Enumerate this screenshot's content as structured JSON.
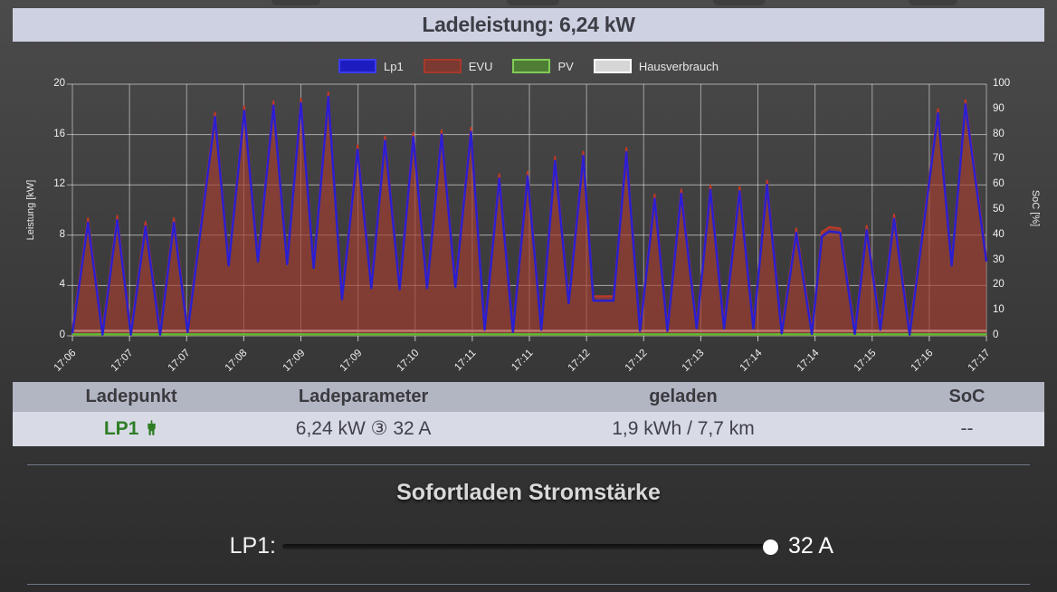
{
  "header": {
    "title": "Ladeleistung: 6,24 kW"
  },
  "legend": {
    "items": [
      {
        "label": "Lp1",
        "fill": "#1c1cc0",
        "border": "#3c3cf0"
      },
      {
        "label": "EVU",
        "fill": "#7c3931",
        "border": "#a8382a"
      },
      {
        "label": "PV",
        "fill": "#4e7e36",
        "border": "#82cc55"
      },
      {
        "label": "Hausverbrauch",
        "fill": "#d6d6d6",
        "border": "#fdfdfd"
      }
    ]
  },
  "chart_data": {
    "type": "line",
    "title": "Ladeleistung",
    "ylabel_left": "Leistung [kW]",
    "ylabel_right": "SoC [%]",
    "y_left": {
      "min": 0,
      "max": 20,
      "ticks": [
        0,
        4,
        8,
        12,
        16,
        20
      ]
    },
    "y_right": {
      "min": 0,
      "max": 100,
      "ticks": [
        0,
        10,
        20,
        30,
        40,
        50,
        60,
        70,
        80,
        90,
        100
      ]
    },
    "x_ticks": [
      "17:06",
      "17:07",
      "17:07",
      "17:08",
      "17:09",
      "17:09",
      "17:10",
      "17:11",
      "17:11",
      "17:12",
      "17:12",
      "17:13",
      "17:14",
      "17:14",
      "17:15",
      "17:16",
      "17:17"
    ],
    "grid": true,
    "legend_position": "top",
    "series": [
      {
        "name": "Lp1",
        "color": "#2a1fd0",
        "unit": "kW",
        "points": [
          [
            0.0,
            0.2
          ],
          [
            0.017,
            9.0
          ],
          [
            0.033,
            0.1
          ],
          [
            0.049,
            9.2
          ],
          [
            0.064,
            0.1
          ],
          [
            0.08,
            8.7
          ],
          [
            0.096,
            0.1
          ],
          [
            0.111,
            9.0
          ],
          [
            0.126,
            0.3
          ],
          [
            0.156,
            17.4
          ],
          [
            0.171,
            5.6
          ],
          [
            0.188,
            17.9
          ],
          [
            0.203,
            5.9
          ],
          [
            0.22,
            18.3
          ],
          [
            0.235,
            5.7
          ],
          [
            0.25,
            18.5
          ],
          [
            0.264,
            5.4
          ],
          [
            0.28,
            19.0
          ],
          [
            0.295,
            2.9
          ],
          [
            0.312,
            14.8
          ],
          [
            0.327,
            3.8
          ],
          [
            0.342,
            15.5
          ],
          [
            0.358,
            3.7
          ],
          [
            0.373,
            15.8
          ],
          [
            0.388,
            3.8
          ],
          [
            0.404,
            16.0
          ],
          [
            0.419,
            3.9
          ],
          [
            0.436,
            16.2
          ],
          [
            0.451,
            0.5
          ],
          [
            0.467,
            12.5
          ],
          [
            0.482,
            0.3
          ],
          [
            0.498,
            12.7
          ],
          [
            0.513,
            0.5
          ],
          [
            0.528,
            13.9
          ],
          [
            0.543,
            2.6
          ],
          [
            0.559,
            14.3
          ],
          [
            0.57,
            2.8
          ],
          [
            0.592,
            2.8
          ],
          [
            0.606,
            14.6
          ],
          [
            0.621,
            0.4
          ],
          [
            0.637,
            10.9
          ],
          [
            0.651,
            0.4
          ],
          [
            0.666,
            11.3
          ],
          [
            0.683,
            0.6
          ],
          [
            0.698,
            11.6
          ],
          [
            0.713,
            0.6
          ],
          [
            0.73,
            11.5
          ],
          [
            0.745,
            0.6
          ],
          [
            0.76,
            12.0
          ],
          [
            0.776,
            0.2
          ],
          [
            0.792,
            8.2
          ],
          [
            0.809,
            0.15
          ],
          [
            0.82,
            7.9
          ],
          [
            0.828,
            8.3
          ],
          [
            0.84,
            8.2
          ],
          [
            0.856,
            0.15
          ],
          [
            0.869,
            8.4
          ],
          [
            0.884,
            0.5
          ],
          [
            0.899,
            9.3
          ],
          [
            0.916,
            0.1
          ],
          [
            0.947,
            17.7
          ],
          [
            0.962,
            5.6
          ],
          [
            0.977,
            18.4
          ],
          [
            1.0,
            5.9
          ]
        ]
      },
      {
        "name": "EVU",
        "color": "#bf3928",
        "fill": "rgba(165,62,48,0.66)",
        "derived_from": "Lp1",
        "offset_kw": 0.35
      },
      {
        "name": "PV",
        "color": "#5dbb33",
        "constant_kw": 0.12
      },
      {
        "name": "Hausverbrauch",
        "color": "#efe9e9",
        "constant_kw": 0.4
      }
    ]
  },
  "table": {
    "headers": [
      "Ladepunkt",
      "Ladeparameter",
      "geladen",
      "SoC"
    ],
    "row": {
      "name": "LP1",
      "status_icon": "plug-icon",
      "ladeparameter": "6,24 kW ③ 32 A",
      "geladen": "1,9 kWh / 7,7 km",
      "soc": "--"
    }
  },
  "sofortladen": {
    "title": "Sofortladen Stromstärke",
    "rows": [
      {
        "label": "LP1:",
        "value": "32 A",
        "slider_position_pct": 98
      }
    ]
  },
  "colors": {
    "header_bg": "#cdd1e1",
    "table_header_bg": "#b2b6c3",
    "table_row_bg": "#d8dbe6",
    "lp1_green": "#2e7d25",
    "lp1_blue": "#2a1fd0",
    "evu_red": "#bf3928",
    "pv_green": "#5dbb33"
  }
}
